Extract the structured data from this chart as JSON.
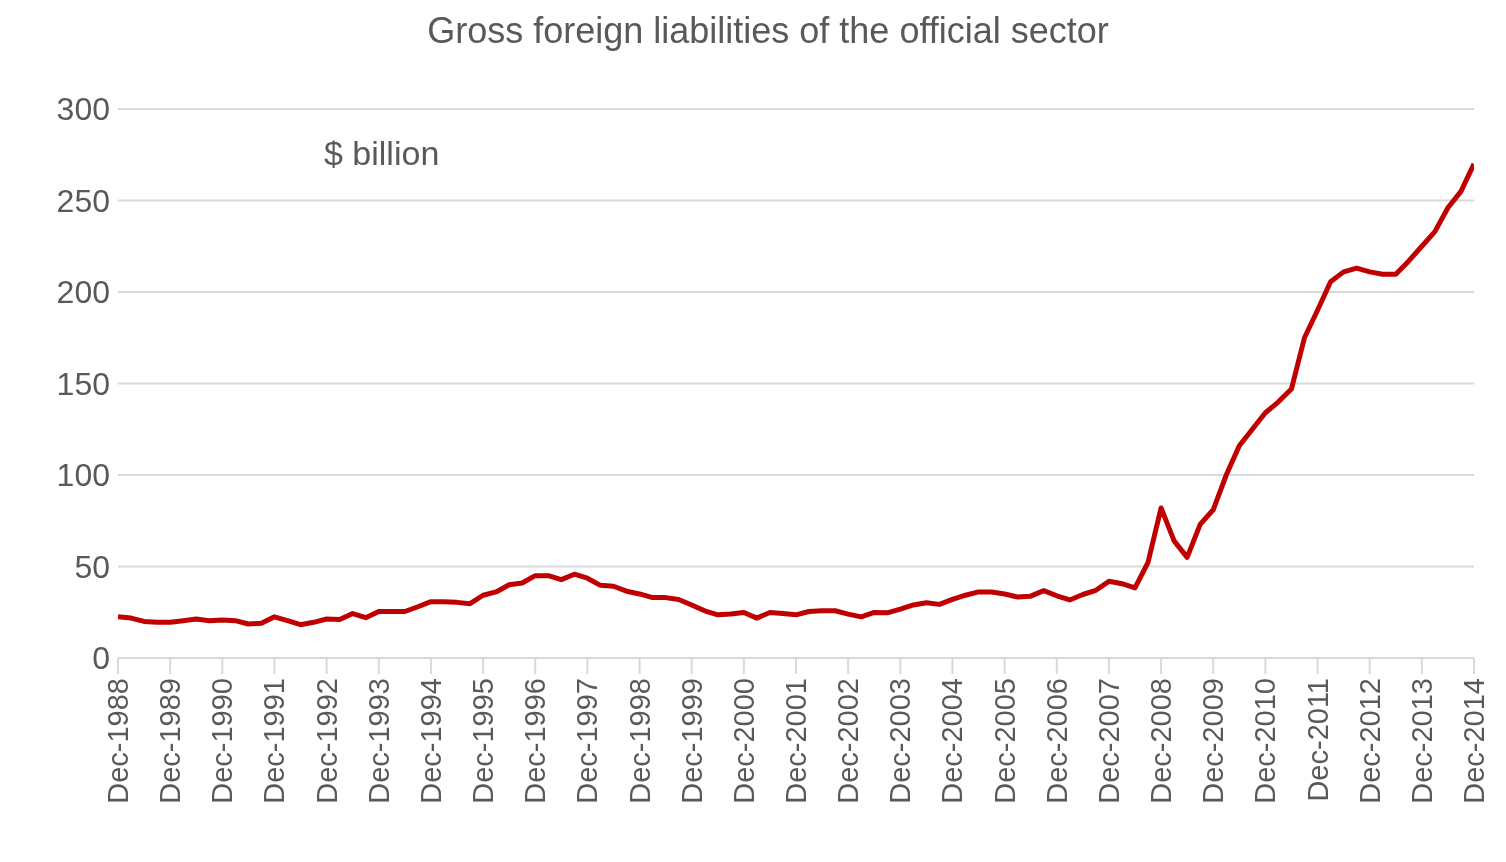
{
  "chart_data": {
    "type": "line",
    "title": "Gross foreign liabilities of the official sector",
    "annotations": [
      "$ billion"
    ],
    "categories": [
      "Dec-1988",
      null,
      null,
      null,
      "Dec-1989",
      null,
      null,
      null,
      "Dec-1990",
      null,
      null,
      null,
      "Dec-1991",
      null,
      null,
      null,
      "Dec-1992",
      null,
      null,
      null,
      "Dec-1993",
      null,
      null,
      null,
      "Dec-1994",
      null,
      null,
      null,
      "Dec-1995",
      null,
      null,
      null,
      "Dec-1996",
      null,
      null,
      null,
      "Dec-1997",
      null,
      null,
      null,
      "Dec-1998",
      null,
      null,
      null,
      "Dec-1999",
      null,
      null,
      null,
      "Dec-2000",
      null,
      null,
      null,
      "Dec-2001",
      null,
      null,
      null,
      "Dec-2002",
      null,
      null,
      null,
      "Dec-2003",
      null,
      null,
      null,
      "Dec-2004",
      null,
      null,
      null,
      "Dec-2005",
      null,
      null,
      null,
      "Dec-2006",
      null,
      null,
      null,
      "Dec-2007",
      null,
      null,
      null,
      "Dec-2008",
      null,
      null,
      null,
      "Dec-2009",
      null,
      null,
      null,
      "Dec-2010",
      null,
      null,
      null,
      "Dec-2011",
      null,
      null,
      null,
      "Dec-2012",
      null,
      null,
      null,
      "Dec-2013",
      null,
      null,
      null,
      "Dec-2014"
    ],
    "series": [
      {
        "color": "#c00000",
        "values": [
          22.5,
          21.8,
          20,
          19.5,
          19.5,
          20.4,
          21.3,
          20.4,
          20.8,
          20.4,
          18.6,
          19,
          22.5,
          20.4,
          18.2,
          19.5,
          21.3,
          21,
          24.3,
          22,
          25.4,
          25.4,
          25.4,
          28,
          30.8,
          30.8,
          30.4,
          29.7,
          34.3,
          36.1,
          40,
          41,
          45,
          45,
          42.8,
          45.8,
          43.6,
          39.7,
          39.2,
          36.5,
          35,
          33,
          33,
          32,
          29,
          25.8,
          23.6,
          24,
          24.9,
          21.8,
          24.9,
          24.3,
          23.6,
          25.4,
          25.8,
          25.8,
          24,
          22.5,
          24.9,
          24.7,
          26.7,
          29,
          30.2,
          29.3,
          32,
          34.3,
          36.1,
          36.1,
          35,
          33.3,
          33.8,
          36.8,
          34,
          31.7,
          34.7,
          37,
          41.9,
          40.6,
          38.3,
          52.3,
          82,
          64,
          55,
          73,
          81,
          100,
          116,
          125,
          134,
          140,
          147,
          175,
          190,
          205.6,
          211,
          213,
          211,
          209.7,
          209.7,
          217,
          225,
          233,
          246,
          255,
          270
        ]
      }
    ],
    "ylim": [
      0,
      300
    ],
    "yticks": [
      0,
      50,
      100,
      150,
      200,
      250,
      300
    ],
    "grid": "y",
    "legend": false,
    "marker": "none",
    "line_style": "solid"
  }
}
